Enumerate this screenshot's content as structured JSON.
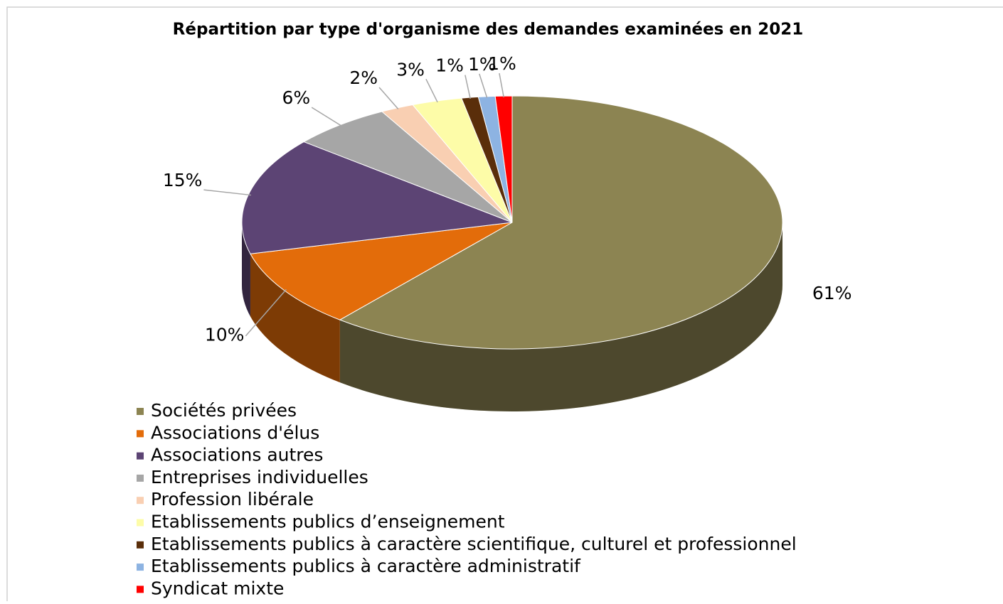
{
  "chart_data": {
    "type": "pie3d",
    "title": "Répartition par type d'organisme des demandes examinées en 2021",
    "categories": [
      "Sociétés privées",
      "Associations d'élus",
      "Associations autres",
      "Entreprises individuelles",
      "Profession libérale",
      "Etablissements publics d’enseignement",
      "Etablissements publics à caractère scientifique, culturel et professionnel",
      "Etablissements publics à caractère administratif",
      "Syndicat mixte"
    ],
    "values": [
      61,
      10,
      15,
      6,
      2,
      3,
      1,
      1,
      1
    ],
    "value_labels": [
      "61%",
      "10%",
      "15%",
      "6%",
      "2%",
      "3%",
      "1%",
      "1%",
      "1%"
    ],
    "colors": [
      "#8c8452",
      "#e36c0a",
      "#5c4474",
      "#a6a6a6",
      "#f9cfb2",
      "#fdfca8",
      "#5a2e0a",
      "#8db3e2",
      "#ff0000"
    ],
    "legend": "bottom-left"
  }
}
